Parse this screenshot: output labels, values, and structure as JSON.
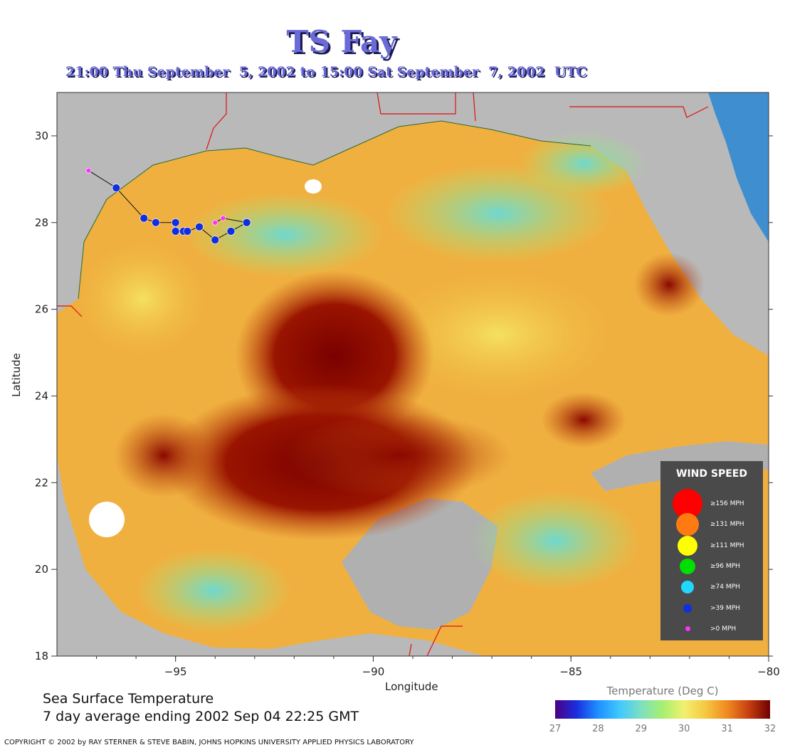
{
  "header": {
    "title": "TS Fay",
    "subtitle": "21:00 Thu September  5, 2002 to 15:00 Sat September  7, 2002  UTC"
  },
  "axes": {
    "xlabel": "Longitude",
    "ylabel": "Latitude",
    "x_ticks": [
      "−95",
      "−90",
      "−85",
      "−80"
    ],
    "y_ticks": [
      "30",
      "28",
      "26",
      "24",
      "22",
      "20",
      "18"
    ]
  },
  "map_info": {
    "lon_range": [
      -98,
      -80
    ],
    "lat_range": [
      18,
      31
    ],
    "background": "sea surface temperature field"
  },
  "storm_track": [
    {
      "lon": -97.2,
      "lat": 29.2,
      "category": "0"
    },
    {
      "lon": -96.5,
      "lat": 28.8,
      "category": "39"
    },
    {
      "lon": -95.8,
      "lat": 28.1,
      "category": "39"
    },
    {
      "lon": -95.5,
      "lat": 28.0,
      "category": "39"
    },
    {
      "lon": -95.0,
      "lat": 28.0,
      "category": "39"
    },
    {
      "lon": -95.0,
      "lat": 27.8,
      "category": "39"
    },
    {
      "lon": -94.8,
      "lat": 27.8,
      "category": "39"
    },
    {
      "lon": -94.7,
      "lat": 27.8,
      "category": "39"
    },
    {
      "lon": -94.4,
      "lat": 27.9,
      "category": "39"
    },
    {
      "lon": -94.0,
      "lat": 27.6,
      "category": "39"
    },
    {
      "lon": -93.6,
      "lat": 27.8,
      "category": "39"
    },
    {
      "lon": -93.2,
      "lat": 28.0,
      "category": "39"
    },
    {
      "lon": -93.8,
      "lat": 28.1,
      "category": "0"
    },
    {
      "lon": -94.0,
      "lat": 28.0,
      "category": "0"
    }
  ],
  "sst": {
    "line1": "Sea Surface Temperature",
    "line2": "7 day average ending 2002 Sep 04 22:25 GMT"
  },
  "legend": {
    "title": "WIND SPEED",
    "items": [
      {
        "label": "≥156 MPH",
        "color": "#ff0000"
      },
      {
        "label": "≥131 MPH",
        "color": "#ff7a10"
      },
      {
        "label": "≥111 MPH",
        "color": "#ffff00"
      },
      {
        "label": "≥96 MPH",
        "color": "#00e000"
      },
      {
        "label": "≥74 MPH",
        "color": "#20d8ff"
      },
      {
        "label": ">39 MPH",
        "color": "#1030e0"
      },
      {
        "label": ">0 MPH",
        "color": "#ff30ff"
      }
    ]
  },
  "colorbar": {
    "title": "Temperature (Deg C)",
    "ticks": [
      "27",
      "28",
      "29",
      "30",
      "31",
      "32"
    ]
  },
  "copyright": "COPYRIGHT © 2002 by RAY STERNER & STEVE BABIN, JOHNS HOPKINS UNIVERSITY APPLIED PHYSICS LABORATORY"
}
